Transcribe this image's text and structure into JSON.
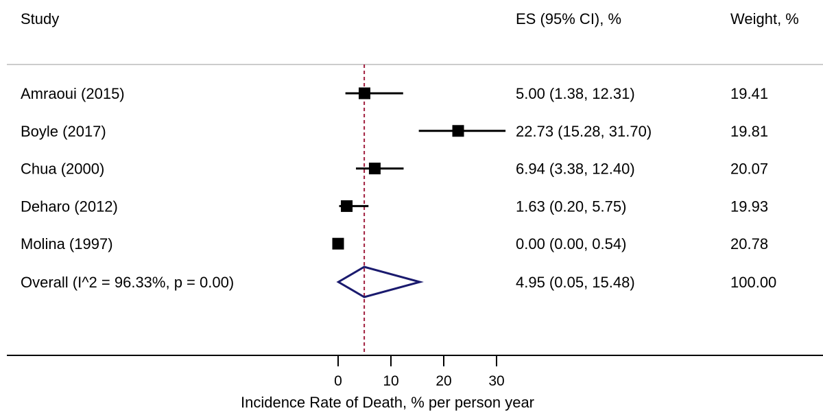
{
  "headers": {
    "study": "Study",
    "es": "ES (95% CI), %",
    "weight": "Weight, %"
  },
  "chart_data": {
    "type": "forest",
    "xlabel": "Incidence Rate of Death, % per person year",
    "x_ticks": [
      0,
      10,
      20,
      30
    ],
    "null_line": 4.95,
    "colors": {
      "marker": "#000000",
      "overall_diamond": "#1a1a6e",
      "reference_line": "#a01c3c",
      "separator": "#cccccc"
    },
    "studies": [
      {
        "study": "Amraoui (2015)",
        "es": 5.0,
        "lo": 1.38,
        "hi": 12.31,
        "es_text": "5.00 (1.38, 12.31)",
        "weight": "19.41"
      },
      {
        "study": "Boyle (2017)",
        "es": 22.73,
        "lo": 15.28,
        "hi": 31.7,
        "es_text": "22.73 (15.28, 31.70)",
        "weight": "19.81"
      },
      {
        "study": "Chua (2000)",
        "es": 6.94,
        "lo": 3.38,
        "hi": 12.4,
        "es_text": "6.94 (3.38, 12.40)",
        "weight": "20.07"
      },
      {
        "study": "Deharo (2012)",
        "es": 1.63,
        "lo": 0.2,
        "hi": 5.75,
        "es_text": "1.63 (0.20, 5.75)",
        "weight": "19.93"
      },
      {
        "study": "Molina (1997)",
        "es": 0.0,
        "lo": 0.0,
        "hi": 0.54,
        "es_text": "0.00 (0.00, 0.54)",
        "weight": "20.78"
      }
    ],
    "overall": {
      "label": "Overall  (I^2 = 96.33%, p = 0.00)",
      "es": 4.95,
      "lo": 0.05,
      "hi": 15.48,
      "es_text": "4.95 (0.05, 15.48)",
      "weight": "100.00"
    }
  }
}
